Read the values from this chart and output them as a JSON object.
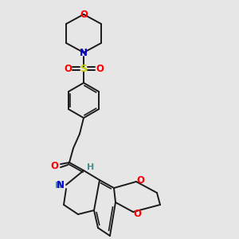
{
  "background_color": "#e6e6e6",
  "colors": {
    "N": "#0000cc",
    "O": "#ff0000",
    "S": "#cccc00",
    "H_label": "#4a9090",
    "bond": "#1a1a1a"
  },
  "lw": 1.4
}
